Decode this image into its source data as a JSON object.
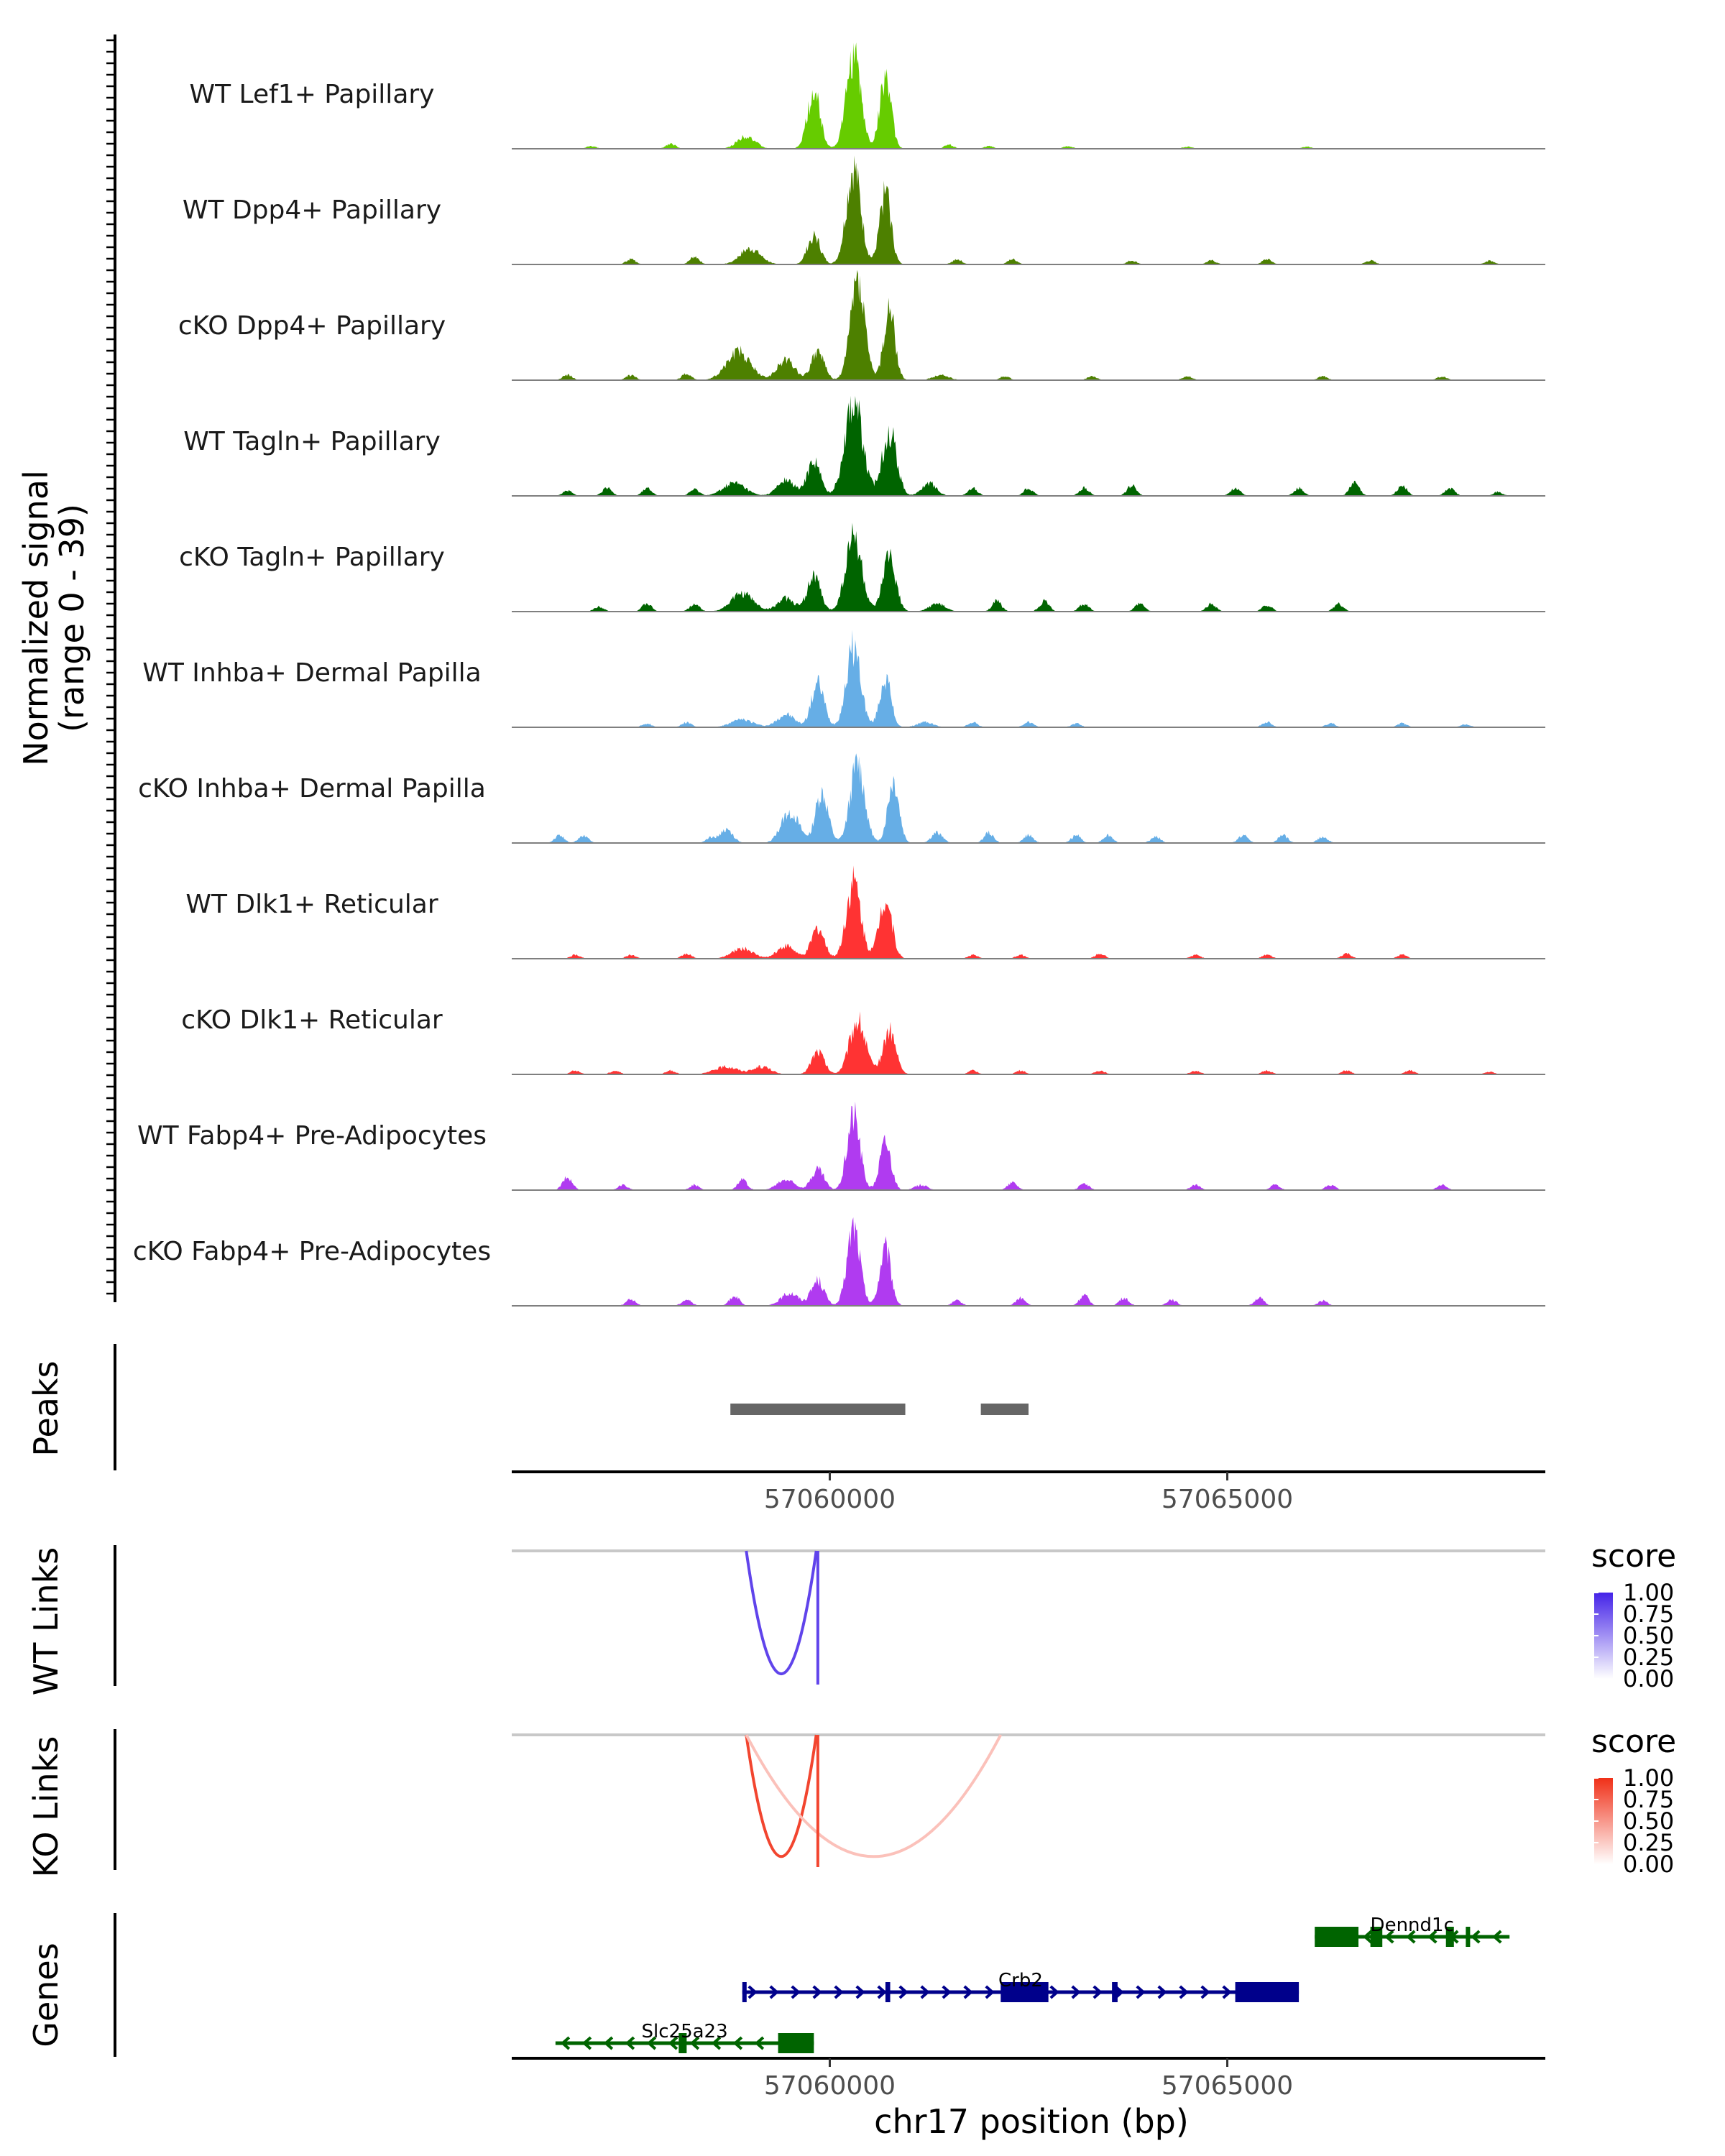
{
  "chart_data": {
    "type": "area",
    "region": {
      "chrom": "chr17",
      "start": 57056000,
      "end": 57069000
    },
    "xlabel": "chr17 position (bp)",
    "xticks": [
      57060000,
      57065000
    ],
    "xtick_labels": [
      "57060000",
      "57065000"
    ],
    "coverage": {
      "ylabel": "Normalized signal",
      "ylabel_range": "(range 0 - 39)",
      "ylim": [
        0,
        39
      ],
      "tracks": [
        {
          "name": "WT Lef1+ Papillary",
          "color": "#66cc00",
          "peaks": [
            [
              57058950,
              5,
              110
            ],
            [
              57059800,
              22,
              80
            ],
            [
              57060300,
              36,
              90
            ],
            [
              57060700,
              28,
              70
            ]
          ],
          "noise": [
            [
              57057000,
              1
            ],
            [
              57058000,
              2
            ],
            [
              57061500,
              1.5
            ],
            [
              57062000,
              1
            ],
            [
              57063000,
              1
            ],
            [
              57064500,
              0.8
            ],
            [
              57066000,
              0.8
            ]
          ]
        },
        {
          "name": "WT Dpp4+ Papillary",
          "color": "#4d8000",
          "peaks": [
            [
              57059000,
              6,
              130
            ],
            [
              57059800,
              11,
              80
            ],
            [
              57060300,
              37,
              90
            ],
            [
              57060700,
              28,
              70
            ]
          ],
          "noise": [
            [
              57057500,
              2
            ],
            [
              57058300,
              3
            ],
            [
              57061600,
              2
            ],
            [
              57062300,
              2
            ],
            [
              57063800,
              1.5
            ],
            [
              57064800,
              1.5
            ],
            [
              57065500,
              2
            ],
            [
              57066800,
              1.5
            ],
            [
              57068300,
              1.5
            ]
          ]
        },
        {
          "name": "cKO Dpp4+ Papillary",
          "color": "#4d8000",
          "peaks": [
            [
              57058850,
              11,
              150
            ],
            [
              57059450,
              8,
              110
            ],
            [
              57059850,
              11,
              80
            ],
            [
              57060350,
              38,
              90
            ],
            [
              57060750,
              27,
              70
            ],
            [
              57061400,
              2,
              100
            ]
          ],
          "noise": [
            [
              57056700,
              2
            ],
            [
              57057500,
              2
            ],
            [
              57058200,
              2.5
            ],
            [
              57062200,
              1.5
            ],
            [
              57063300,
              1.5
            ],
            [
              57064500,
              1.5
            ],
            [
              57066200,
              1.5
            ],
            [
              57067700,
              1.5
            ]
          ]
        },
        {
          "name": "WT Tagln+ Papillary",
          "color": "#006400",
          "peaks": [
            [
              57058800,
              5,
              140
            ],
            [
              57059450,
              6,
              110
            ],
            [
              57059800,
              14,
              80
            ],
            [
              57060300,
              37,
              110
            ],
            [
              57060750,
              25,
              90
            ],
            [
              57061250,
              5,
              90
            ]
          ],
          "noise": [
            [
              57056700,
              2
            ],
            [
              57057200,
              3
            ],
            [
              57057700,
              3
            ],
            [
              57058300,
              2.5
            ],
            [
              57061800,
              3
            ],
            [
              57062500,
              3
            ],
            [
              57063200,
              3
            ],
            [
              57063800,
              4
            ],
            [
              57065100,
              3
            ],
            [
              57065900,
              3
            ],
            [
              57066600,
              5
            ],
            [
              57067200,
              4
            ],
            [
              57067800,
              3
            ],
            [
              57068400,
              1.5
            ]
          ]
        },
        {
          "name": "cKO Tagln+ Papillary",
          "color": "#006400",
          "peaks": [
            [
              57058900,
              7,
              140
            ],
            [
              57059450,
              5,
              110
            ],
            [
              57059800,
              14,
              80
            ],
            [
              57060300,
              29,
              100
            ],
            [
              57060750,
              21,
              80
            ],
            [
              57061350,
              3,
              100
            ]
          ],
          "noise": [
            [
              57057100,
              2
            ],
            [
              57057700,
              3
            ],
            [
              57058300,
              3
            ],
            [
              57062100,
              4
            ],
            [
              57062700,
              4
            ],
            [
              57063200,
              3
            ],
            [
              57063900,
              3
            ],
            [
              57064800,
              3
            ],
            [
              57065500,
              2.5
            ],
            [
              57066400,
              3
            ]
          ]
        },
        {
          "name": "WT Inhba+ Dermal Papilla",
          "color": "#66aee6",
          "peaks": [
            [
              57058900,
              3,
              140
            ],
            [
              57059450,
              5,
              110
            ],
            [
              57059850,
              17,
              80
            ],
            [
              57060300,
              31,
              90
            ],
            [
              57060700,
              19,
              70
            ],
            [
              57061200,
              2,
              100
            ]
          ],
          "noise": [
            [
              57057700,
              1.5
            ],
            [
              57058200,
              2
            ],
            [
              57061800,
              2
            ],
            [
              57062500,
              2
            ],
            [
              57063100,
              1.5
            ],
            [
              57065500,
              2
            ],
            [
              57066300,
              1.5
            ],
            [
              57067200,
              1.5
            ],
            [
              57068000,
              1.2
            ]
          ]
        },
        {
          "name": "cKO Inhba+ Dermal Papilla",
          "color": "#66aee6",
          "peaks": [
            [
              57058700,
              5,
              80
            ],
            [
              57059500,
              12,
              110
            ],
            [
              57059900,
              19,
              80
            ],
            [
              57060350,
              30,
              90
            ],
            [
              57060800,
              24,
              70
            ],
            [
              57061350,
              4,
              70
            ]
          ],
          "noise": [
            [
              57056600,
              3
            ],
            [
              57056900,
              3
            ],
            [
              57058500,
              2
            ],
            [
              57062000,
              4
            ],
            [
              57062500,
              3
            ],
            [
              57063100,
              3
            ],
            [
              57063500,
              3
            ],
            [
              57064100,
              2.5
            ],
            [
              57065200,
              3
            ],
            [
              57065700,
              3
            ],
            [
              57066200,
              2.5
            ]
          ]
        },
        {
          "name": "WT Dlk1+ Reticular",
          "color": "#ff3333",
          "peaks": [
            [
              57058900,
              4,
              130
            ],
            [
              57059450,
              5,
              110
            ],
            [
              57059850,
              12,
              80
            ],
            [
              57060300,
              30,
              90
            ],
            [
              57060700,
              24,
              80
            ]
          ],
          "noise": [
            [
              57056800,
              1.5
            ],
            [
              57057500,
              1.5
            ],
            [
              57058200,
              2
            ],
            [
              57061800,
              1.5
            ],
            [
              57062400,
              1.5
            ],
            [
              57063400,
              2
            ],
            [
              57064600,
              1.5
            ],
            [
              57065500,
              1.5
            ],
            [
              57066500,
              2
            ],
            [
              57067200,
              1.5
            ]
          ]
        },
        {
          "name": "cKO Dlk1+ Reticular",
          "color": "#ff3333",
          "peaks": [
            [
              57058700,
              3,
              150
            ],
            [
              57059150,
              3,
              110
            ],
            [
              57059850,
              9,
              80
            ],
            [
              57060350,
              21,
              100
            ],
            [
              57060750,
              17,
              80
            ]
          ],
          "noise": [
            [
              57056800,
              1.5
            ],
            [
              57057300,
              1.5
            ],
            [
              57058000,
              1.5
            ],
            [
              57061800,
              1.5
            ],
            [
              57062400,
              1.5
            ],
            [
              57063400,
              1.5
            ],
            [
              57064600,
              1.5
            ],
            [
              57065500,
              1.5
            ],
            [
              57066500,
              1.5
            ],
            [
              57067300,
              1.5
            ],
            [
              57068300,
              1
            ]
          ]
        },
        {
          "name": "WT Fabp4+ Pre-Adipocytes",
          "color": "#b03bf0",
          "peaks": [
            [
              57059450,
              4,
              110
            ],
            [
              57059850,
              8,
              80
            ],
            [
              57060300,
              30,
              80
            ],
            [
              57060700,
              19,
              70
            ],
            [
              57061150,
              2,
              80
            ]
          ],
          "noise": [
            [
              57056700,
              5
            ],
            [
              57057400,
              2
            ],
            [
              57058300,
              2
            ],
            [
              57058900,
              4
            ],
            [
              57062300,
              3
            ],
            [
              57063200,
              2.5
            ],
            [
              57064600,
              2
            ],
            [
              57065600,
              2
            ],
            [
              57066300,
              2
            ],
            [
              57067700,
              2
            ]
          ]
        },
        {
          "name": "cKO Fabp4+ Pre-Adipocytes",
          "color": "#b03bf0",
          "peaks": [
            [
              57059500,
              5,
              110
            ],
            [
              57059850,
              10,
              80
            ],
            [
              57060300,
              31,
              80
            ],
            [
              57060700,
              22,
              70
            ]
          ],
          "noise": [
            [
              57057500,
              2.5
            ],
            [
              57058200,
              2.5
            ],
            [
              57058800,
              4
            ],
            [
              57061600,
              2
            ],
            [
              57062400,
              3
            ],
            [
              57063200,
              4
            ],
            [
              57063700,
              3
            ],
            [
              57064300,
              2.5
            ],
            [
              57065400,
              3
            ],
            [
              57066200,
              2
            ]
          ]
        }
      ]
    },
    "peaks": {
      "label": "Peaks",
      "color": "#666666",
      "ranges": [
        [
          57058750,
          57060950
        ],
        [
          57061900,
          57062500
        ]
      ]
    },
    "links": [
      {
        "label": "WT Links",
        "color_high": "#4423e8",
        "arcs": [
          {
            "start": 57058950,
            "end": 57059830,
            "score": 0.85
          },
          {
            "start": 57059820,
            "end": 57059850,
            "score": 0.85
          }
        ],
        "legend": {
          "title": "score",
          "ticks": [
            "1.00",
            "0.75",
            "0.50",
            "0.25",
            "0.00"
          ]
        }
      },
      {
        "label": "KO Links",
        "color_high": "#f03018",
        "arcs": [
          {
            "start": 57058950,
            "end": 57059830,
            "score": 0.9
          },
          {
            "start": 57058950,
            "end": 57062150,
            "score": 0.3
          },
          {
            "start": 57059820,
            "end": 57059850,
            "score": 0.9
          }
        ],
        "legend": {
          "title": "score",
          "ticks": [
            "1.00",
            "0.75",
            "0.50",
            "0.25",
            "0.00"
          ]
        }
      }
    ],
    "genes": {
      "label": "Genes",
      "items": [
        {
          "name": "Dennd1c",
          "strand": "-",
          "color": "#006400",
          "row": 0,
          "start": 57066100,
          "end": 57068550,
          "exons": [
            [
              57066100,
              57066650
            ],
            [
              57066800,
              57066950
            ],
            [
              57067750,
              57067850
            ],
            [
              57068000,
              57068050
            ]
          ]
        },
        {
          "name": "Crb2",
          "strand": "+",
          "color": "#00008b",
          "row": 1,
          "start": 57058900,
          "end": 57065900,
          "exons": [
            [
              57058900,
              57058950
            ],
            [
              57060700,
              57060760
            ],
            [
              57062150,
              57062750
            ],
            [
              57063550,
              57063620
            ],
            [
              57065100,
              57065900
            ]
          ]
        },
        {
          "name": "Slc25a23",
          "strand": "-",
          "color": "#006400",
          "row": 2,
          "start": 57056550,
          "end": 57059800,
          "exons": [
            [
              57058100,
              57058200
            ],
            [
              57059350,
              57059800
            ]
          ]
        }
      ]
    }
  }
}
